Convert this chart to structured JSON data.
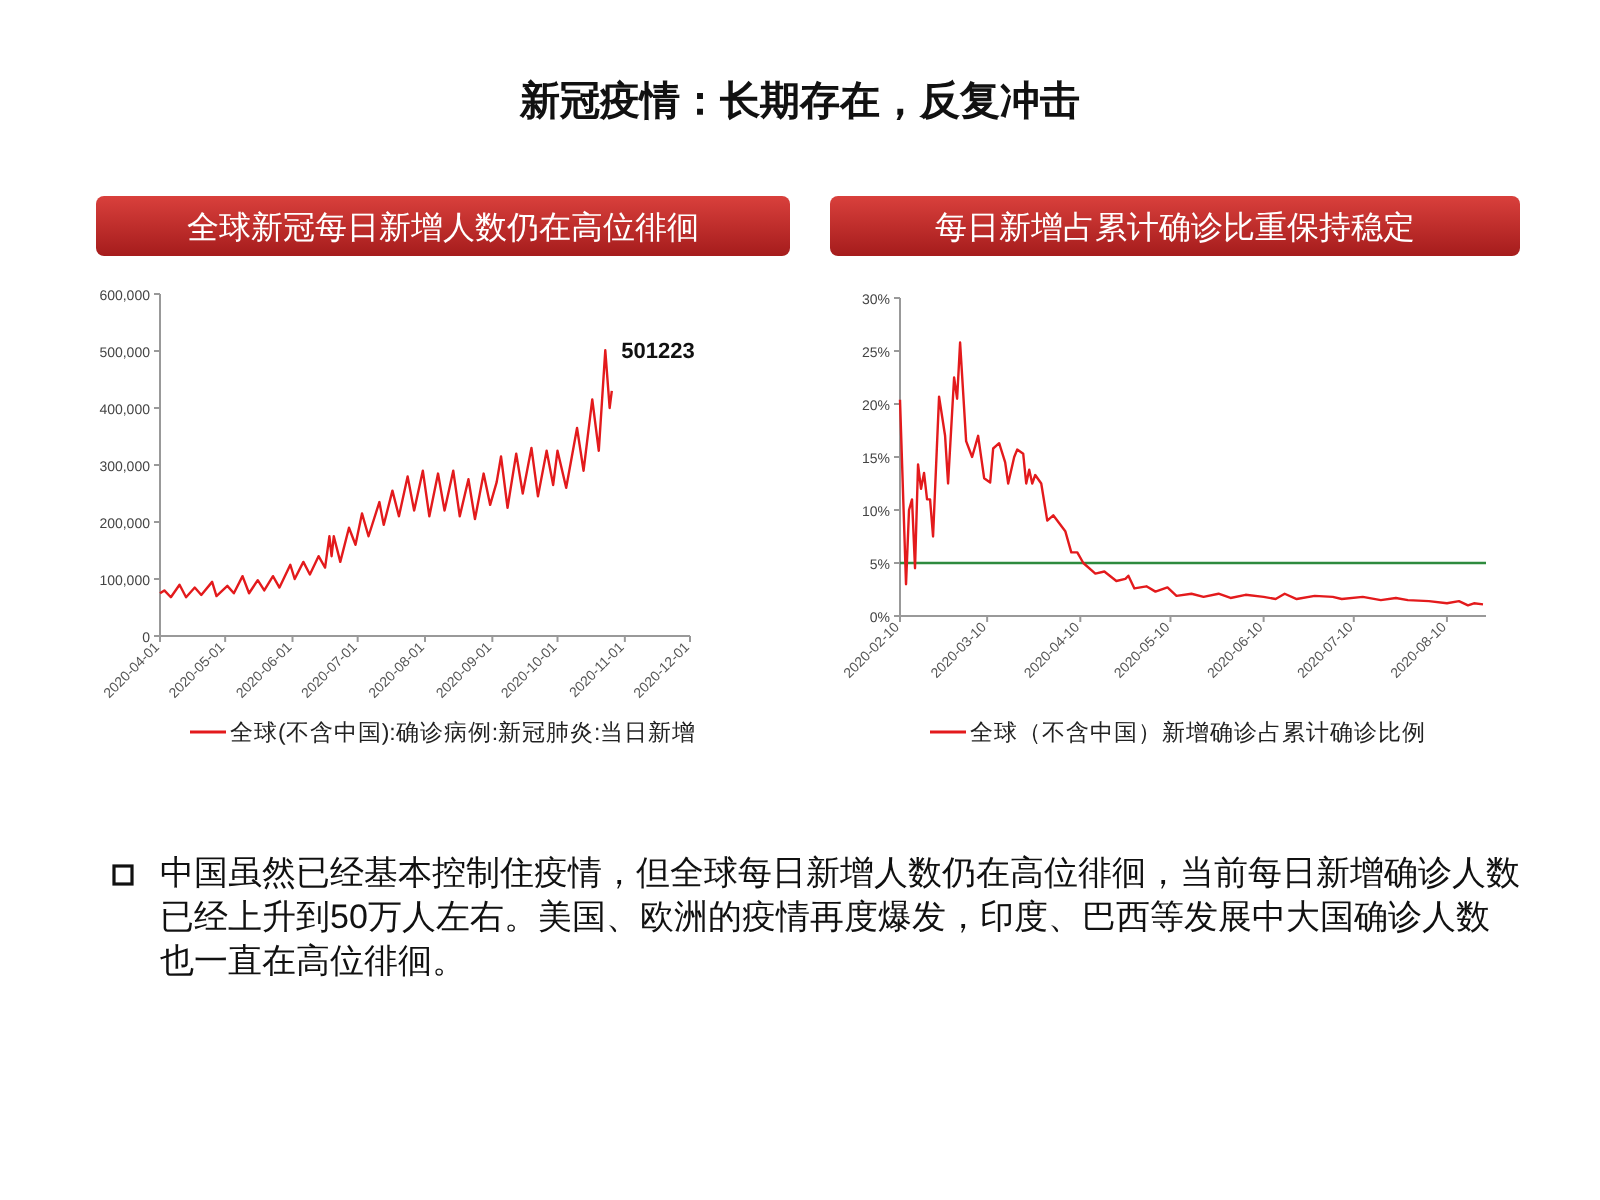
{
  "chart_data": [
    {
      "type": "line",
      "title": "全球新冠每日新增人数仍在高位徘徊",
      "annotations": [
        "新冠疫情：长期存在，反复冲击",
        {
          "text": "501223",
          "x": "2020-10-23",
          "y": 501223
        }
      ],
      "x": [
        "2020-04-01",
        "2020-04-03",
        "2020-04-06",
        "2020-04-10",
        "2020-04-13",
        "2020-04-17",
        "2020-04-20",
        "2020-04-25",
        "2020-04-27",
        "2020-05-02",
        "2020-05-05",
        "2020-05-09",
        "2020-05-12",
        "2020-05-16",
        "2020-05-19",
        "2020-05-23",
        "2020-05-26",
        "2020-05-31",
        "2020-06-02",
        "2020-06-06",
        "2020-06-09",
        "2020-06-13",
        "2020-06-16",
        "2020-06-18",
        "2020-06-19",
        "2020-06-20",
        "2020-06-23",
        "2020-06-27",
        "2020-06-30",
        "2020-07-03",
        "2020-07-06",
        "2020-07-11",
        "2020-07-13",
        "2020-07-17",
        "2020-07-20",
        "2020-07-24",
        "2020-07-27",
        "2020-07-31",
        "2020-08-03",
        "2020-08-07",
        "2020-08-10",
        "2020-08-14",
        "2020-08-17",
        "2020-08-21",
        "2020-08-24",
        "2020-08-28",
        "2020-08-31",
        "2020-09-03",
        "2020-09-05",
        "2020-09-08",
        "2020-09-12",
        "2020-09-15",
        "2020-09-19",
        "2020-09-22",
        "2020-09-26",
        "2020-09-29",
        "2020-10-01",
        "2020-10-05",
        "2020-10-10",
        "2020-10-13",
        "2020-10-17",
        "2020-10-20",
        "2020-10-23",
        "2020-10-25",
        "2020-10-26"
      ],
      "series": [
        {
          "name": "全球(不含中国):确诊病例:新冠肺炎:当日新增",
          "color": "#e31a1c",
          "values": [
            75000,
            80000,
            68000,
            90000,
            68000,
            85000,
            72000,
            95000,
            70000,
            88000,
            75000,
            105000,
            75000,
            98000,
            80000,
            105000,
            85000,
            125000,
            100000,
            130000,
            108000,
            140000,
            120000,
            175000,
            140000,
            175000,
            130000,
            190000,
            160000,
            215000,
            175000,
            235000,
            195000,
            255000,
            210000,
            280000,
            220000,
            290000,
            210000,
            285000,
            220000,
            290000,
            210000,
            275000,
            205000,
            285000,
            230000,
            270000,
            315000,
            225000,
            320000,
            250000,
            330000,
            245000,
            325000,
            265000,
            325000,
            260000,
            365000,
            290000,
            415000,
            325000,
            501223,
            400000,
            430000
          ]
        }
      ],
      "xlim": [
        "2020-04-01",
        "2020-12-01"
      ],
      "xticks": [
        "2020-04-01",
        "2020-05-01",
        "2020-06-01",
        "2020-07-01",
        "2020-08-01",
        "2020-09-01",
        "2020-10-01",
        "2020-11-01",
        "2020-12-01"
      ],
      "ylim": [
        0,
        600000
      ],
      "yticks": [
        0,
        {
          "value": 100000,
          "label": "100,000"
        },
        {
          "value": 200000,
          "label": "200,000"
        },
        {
          "value": 300000,
          "label": "300,000"
        },
        {
          "value": 400000,
          "label": "400,000"
        },
        {
          "value": 500000,
          "label": "500,000"
        },
        {
          "value": 600000,
          "label": "600,000"
        }
      ],
      "legend": "bottom"
    },
    {
      "type": "line",
      "title": "每日新增占累计确诊比重保持稳定",
      "annotations": [
        "中国虽然已经基本控制住疫情，但全球每日新增人数仍在高位徘徊，当前每日新增确诊人数已经上升到50万人左右。美国、欧洲的疫情再度爆发，印度、巴西等发展中大国确诊人数也一直在高位徘徊。"
      ],
      "x": [
        "2020-02-10",
        "2020-02-12",
        "2020-02-13",
        "2020-02-14",
        "2020-02-15",
        "2020-02-16",
        "2020-02-17",
        "2020-02-18",
        "2020-02-19",
        "2020-02-20",
        "2020-02-21",
        "2020-02-23",
        "2020-02-25",
        "2020-02-26",
        "2020-02-28",
        "2020-02-29",
        "2020-03-01",
        "2020-03-03",
        "2020-03-05",
        "2020-03-07",
        "2020-03-09",
        "2020-03-11",
        "2020-03-12",
        "2020-03-14",
        "2020-03-16",
        "2020-03-17",
        "2020-03-19",
        "2020-03-20",
        "2020-03-22",
        "2020-03-23",
        "2020-03-24",
        "2020-03-25",
        "2020-03-26",
        "2020-03-28",
        "2020-03-30",
        "2020-04-01",
        "2020-04-05",
        "2020-04-07",
        "2020-04-09",
        "2020-04-11",
        "2020-04-15",
        "2020-04-18",
        "2020-04-22",
        "2020-04-25",
        "2020-04-26",
        "2020-04-28",
        "2020-05-02",
        "2020-05-05",
        "2020-05-09",
        "2020-05-12",
        "2020-05-17",
        "2020-05-21",
        "2020-05-26",
        "2020-05-30",
        "2020-06-04",
        "2020-06-10",
        "2020-06-14",
        "2020-06-17",
        "2020-06-21",
        "2020-06-27",
        "2020-07-03",
        "2020-07-06",
        "2020-07-13",
        "2020-07-19",
        "2020-07-24",
        "2020-07-28",
        "2020-08-04",
        "2020-08-10",
        "2020-08-14",
        "2020-08-17",
        "2020-08-19",
        "2020-08-22"
      ],
      "series": [
        {
          "name": "全球（不含中国）新增确诊占累计确诊比例",
          "color": "#e31a1c",
          "values": [
            20.4,
            3,
            10,
            11,
            4.5,
            14.3,
            12,
            13.5,
            11,
            11,
            7.5,
            20.7,
            17,
            12.5,
            22.5,
            20.5,
            25.8,
            16.5,
            15,
            17,
            13,
            12.6,
            15.8,
            16.3,
            14.5,
            12.5,
            15,
            15.7,
            15.3,
            12.5,
            13.8,
            12.5,
            13.3,
            12.5,
            9,
            9.5,
            8,
            6,
            6,
            5,
            4,
            4.2,
            3.3,
            3.5,
            3.8,
            2.6,
            2.8,
            2.3,
            2.7,
            1.9,
            2.1,
            1.8,
            2.1,
            1.7,
            2,
            1.8,
            1.6,
            2.1,
            1.6,
            1.9,
            1.8,
            1.6,
            1.8,
            1.5,
            1.7,
            1.5,
            1.4,
            1.2,
            1.4,
            1,
            1.2,
            1.1
          ]
        }
      ],
      "xlim": [
        "2020-02-10",
        "2020-08-23"
      ],
      "xticks": [
        "2020-02-10",
        "2020-03-10",
        "2020-04-10",
        "2020-05-10",
        "2020-06-10",
        "2020-07-10",
        "2020-08-10"
      ],
      "ylim": [
        0,
        30
      ],
      "yticks": [
        {
          "value": 0,
          "label": "0%"
        },
        {
          "value": 5,
          "label": "5%"
        },
        {
          "value": 10,
          "label": "10%"
        },
        {
          "value": 15,
          "label": "15%"
        },
        {
          "value": 20,
          "label": "20%"
        },
        {
          "value": 25,
          "label": "25%"
        },
        {
          "value": 30,
          "label": "30%"
        }
      ],
      "ref_lines": [
        {
          "axis": "y",
          "value": 5,
          "color": "#2e8b3e"
        }
      ],
      "legend": "bottom"
    }
  ]
}
